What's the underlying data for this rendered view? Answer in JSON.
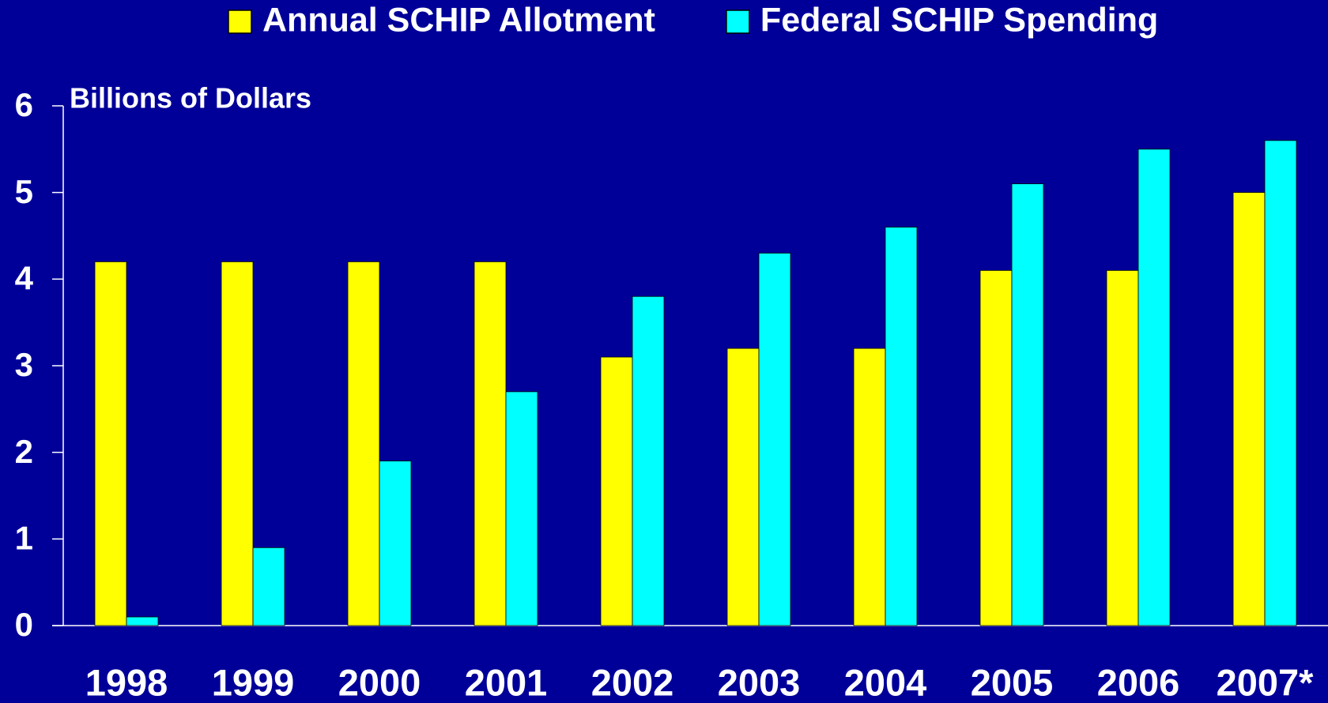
{
  "chart_data": {
    "type": "bar",
    "y_label": "Billions of Dollars",
    "categories": [
      "1998",
      "1999",
      "2000",
      "2001",
      "2002",
      "2003",
      "2004",
      "2005",
      "2006",
      "2007*"
    ],
    "series": [
      {
        "name": "Annual SCHIP Allotment",
        "color": "#ffff00",
        "values": [
          4.2,
          4.2,
          4.2,
          4.2,
          3.1,
          3.2,
          3.2,
          4.1,
          4.1,
          5.0
        ]
      },
      {
        "name": "Federal SCHIP Spending",
        "color": "#00ffff",
        "values": [
          0.1,
          0.9,
          1.9,
          2.7,
          3.8,
          4.3,
          4.6,
          5.1,
          5.5,
          5.6
        ]
      }
    ],
    "ylim": [
      0,
      6
    ],
    "yticks": [
      0,
      1,
      2,
      3,
      4,
      5,
      6
    ],
    "legend": "top",
    "grid": false
  }
}
